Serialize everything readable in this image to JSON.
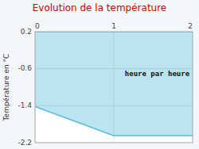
{
  "chart_data": {
    "type": "area",
    "title": "Evolution de la température",
    "ylabel": "Température en °C",
    "x": [
      0,
      1,
      2
    ],
    "series": [
      {
        "values": [
          -1.42,
          -2.05,
          -2.05
        ],
        "color": "#55bbdd"
      }
    ],
    "y_top": 0.2,
    "xlim": [
      0,
      2
    ],
    "ylim": [
      -2.2,
      0.2
    ],
    "xticks": [
      0,
      1,
      2
    ],
    "yticks": [
      0.2,
      -0.6,
      -1.4,
      -2.2
    ],
    "grid": true,
    "annotations": [
      {
        "text": "heure par heure",
        "x": 1.55,
        "y": -0.72
      }
    ]
  }
}
